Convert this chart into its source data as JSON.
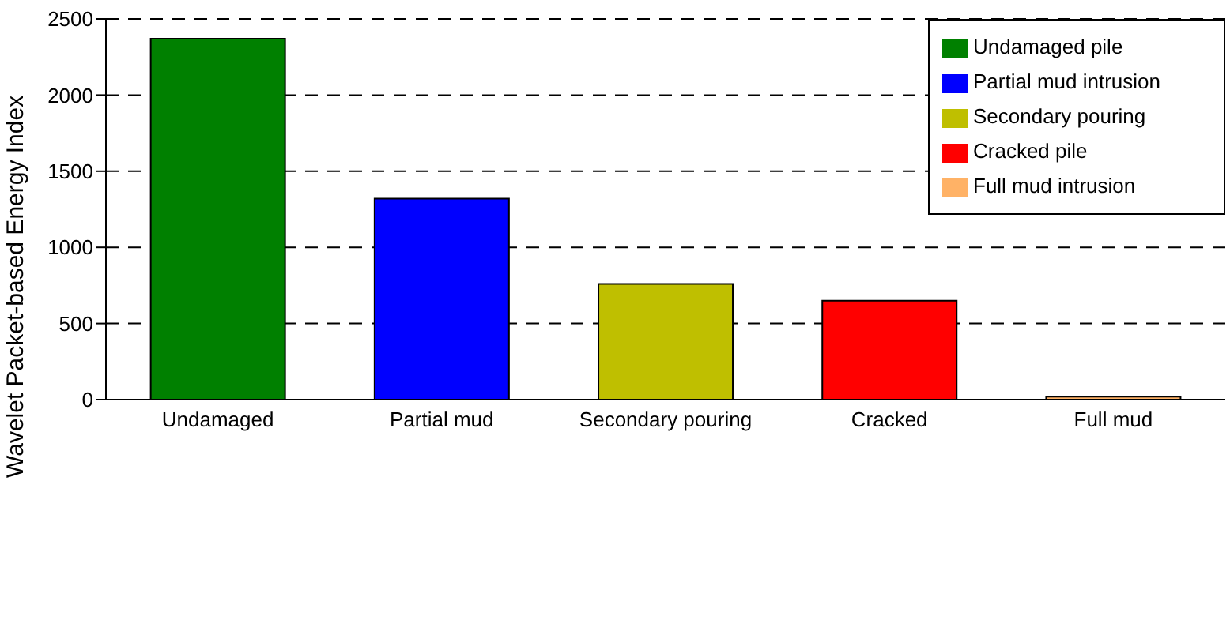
{
  "chart_data": {
    "type": "bar",
    "ylabel": "Wavelet Packet-based Energy Index",
    "categories": [
      "Undamaged",
      "Partial mud",
      "Secondary pouring",
      "Cracked",
      "Full mud"
    ],
    "series": [
      {
        "name": "Undamaged pile",
        "color": "#008000",
        "values": [
          2370,
          null,
          null,
          null,
          null
        ]
      },
      {
        "name": "Partial mud intrusion",
        "color": "#0000ff",
        "values": [
          null,
          1320,
          null,
          null,
          null
        ]
      },
      {
        "name": "Secondary pouring",
        "color": "#bfbf00",
        "values": [
          null,
          null,
          760,
          null,
          null
        ]
      },
      {
        "name": "Cracked pile",
        "color": "#ff0000",
        "values": [
          null,
          null,
          null,
          650,
          null
        ]
      },
      {
        "name": "Full mud intrusion",
        "color": "#ffb266",
        "values": [
          null,
          null,
          null,
          null,
          20
        ]
      }
    ],
    "ylim": [
      0,
      2500
    ],
    "yticks": [
      0,
      500,
      1000,
      1500,
      2000,
      2500
    ],
    "grid": "y",
    "legend": "top right"
  }
}
